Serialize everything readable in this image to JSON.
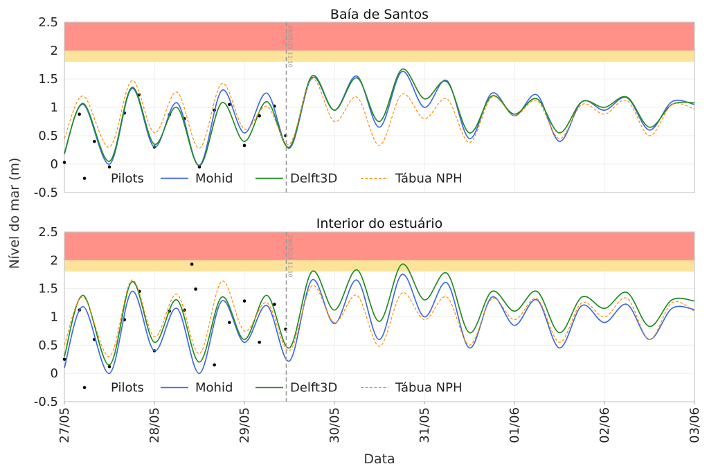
{
  "ylabel": "Nível do mar (m)",
  "xlabel": "Data",
  "now_label": "29/05/25 11:10",
  "x_tick_labels": [
    "27/05",
    "28/05",
    "29/05",
    "30/05",
    "31/05",
    "01/06",
    "02/06",
    "03/06"
  ],
  "legend": [
    "Pilots",
    "Mohid",
    "Delft3D",
    "Tábua NPH"
  ],
  "colors": {
    "pilots": "#000000",
    "mohid": "#4169e1",
    "delft": "#228b22",
    "nph": "#ff8c00",
    "red_band": "#ff9188",
    "yellow_band": "#fbe49a",
    "now_line": "#999999"
  },
  "chart_data": [
    {
      "type": "line",
      "title": "Baía de Santos",
      "x_range": [
        "27/05",
        "03/06"
      ],
      "ylim": [
        -0.5,
        2.5
      ],
      "y_ticks": [
        "-0.5",
        "0",
        "0.5",
        "1",
        "1.5",
        "2",
        "2.5"
      ],
      "bands": [
        {
          "color": "red",
          "from": 2.0,
          "to": 2.5
        },
        {
          "color": "yellow",
          "from": 1.8,
          "to": 2.0
        }
      ],
      "now_marker": "29/05/25 11:10",
      "series": [
        {
          "name": "Pilots",
          "style": "dots",
          "x": [
            "27/05 00:00",
            "27/05 04:00",
            "27/05 08:00",
            "27/05 12:00",
            "27/05 16:00",
            "27/05 20:00",
            "28/05 00:00",
            "28/05 04:00",
            "28/05 08:00",
            "28/05 12:00",
            "28/05 16:00",
            "28/05 20:00",
            "29/05 00:00",
            "29/05 04:00",
            "29/05 08:00",
            "29/05 11:00"
          ],
          "y": [
            0.03,
            0.88,
            0.4,
            -0.05,
            0.9,
            1.22,
            0.3,
            0.87,
            0.8,
            -0.05,
            0.95,
            1.05,
            0.33,
            0.85,
            1.02,
            0.5
          ]
        },
        {
          "name": "Mohid",
          "style": "solid",
          "x": [
            "27/05 00:00",
            "27/05 05:00",
            "27/05 12:00",
            "27/05 18:00",
            "28/05 00:00",
            "28/05 06:00",
            "28/05 12:00",
            "28/05 18:00",
            "29/05 00:00",
            "29/05 06:00",
            "29/05 12:00",
            "29/05 18:00",
            "30/05 00:00",
            "30/05 06:00",
            "30/05 12:00",
            "30/05 18:00",
            "31/05 00:00",
            "31/05 06:00",
            "31/05 12:00",
            "31/05 18:00",
            "01/06 00:00",
            "01/06 06:00",
            "01/06 12:00",
            "01/06 18:00",
            "02/06 00:00",
            "02/06 06:00",
            "02/06 12:00",
            "02/06 18:00",
            "03/06 00:00"
          ],
          "y": [
            0.2,
            1.05,
            0.0,
            1.33,
            0.3,
            1.08,
            -0.02,
            1.3,
            0.55,
            1.25,
            0.28,
            1.52,
            0.95,
            1.55,
            0.65,
            1.63,
            1.0,
            1.47,
            0.45,
            1.25,
            0.85,
            1.22,
            0.4,
            1.1,
            0.95,
            1.17,
            0.6,
            1.1,
            1.05
          ]
        },
        {
          "name": "Delft3D",
          "style": "solid",
          "x": [
            "27/05 00:00",
            "27/05 05:00",
            "27/05 12:00",
            "27/05 18:00",
            "28/05 00:00",
            "28/05 06:00",
            "28/05 12:00",
            "28/05 18:00",
            "29/05 00:00",
            "29/05 06:00",
            "29/05 12:00",
            "29/05 18:00",
            "30/05 00:00",
            "30/05 06:00",
            "30/05 12:00",
            "30/05 18:00",
            "31/05 00:00",
            "31/05 06:00",
            "31/05 12:00",
            "31/05 18:00",
            "01/06 00:00",
            "01/06 06:00",
            "01/06 12:00",
            "01/06 18:00",
            "02/06 00:00",
            "02/06 06:00",
            "02/06 12:00",
            "02/06 18:00",
            "03/06 00:00"
          ],
          "y": [
            0.18,
            1.07,
            0.05,
            1.35,
            0.35,
            1.0,
            -0.03,
            1.08,
            0.4,
            1.1,
            0.3,
            1.55,
            0.95,
            1.52,
            0.75,
            1.67,
            1.15,
            1.45,
            0.55,
            1.2,
            0.88,
            1.15,
            0.55,
            1.1,
            1.0,
            1.18,
            0.65,
            1.05,
            1.08
          ]
        },
        {
          "name": "Tábua NPH",
          "style": "dashed",
          "x": [
            "27/05 00:00",
            "27/05 05:00",
            "27/05 12:00",
            "27/05 18:00",
            "28/05 00:00",
            "28/05 06:00",
            "28/05 12:00",
            "28/05 18:00",
            "29/05 00:00",
            "29/05 06:00",
            "29/05 12:00",
            "29/05 18:00",
            "30/05 00:00",
            "30/05 06:00",
            "30/05 12:00",
            "30/05 18:00",
            "31/05 00:00",
            "31/05 06:00",
            "31/05 12:00",
            "31/05 18:00",
            "01/06 00:00",
            "01/06 06:00",
            "01/06 12:00",
            "01/06 18:00",
            "02/06 00:00",
            "02/06 06:00",
            "02/06 12:00",
            "02/06 18:00",
            "03/06 00:00"
          ],
          "y": [
            0.45,
            1.2,
            0.3,
            1.47,
            0.55,
            1.27,
            0.28,
            1.42,
            0.62,
            1.02,
            0.35,
            1.5,
            0.75,
            1.18,
            0.33,
            1.23,
            0.8,
            1.15,
            0.38,
            1.18,
            0.85,
            1.12,
            0.45,
            1.05,
            0.88,
            1.12,
            0.5,
            1.05,
            0.97
          ]
        }
      ]
    },
    {
      "type": "line",
      "title": "Interior do estuário",
      "x_range": [
        "27/05",
        "03/06"
      ],
      "ylim": [
        -0.5,
        2.5
      ],
      "y_ticks": [
        "-0.5",
        "0",
        "0.5",
        "1",
        "1.5",
        "2",
        "2.5"
      ],
      "bands": [
        {
          "color": "red",
          "from": 2.0,
          "to": 2.5
        },
        {
          "color": "yellow",
          "from": 1.8,
          "to": 2.0
        }
      ],
      "now_marker": "29/05/25 11:10",
      "series": [
        {
          "name": "Pilots",
          "style": "dots",
          "x": [
            "27/05 00:00",
            "27/05 04:00",
            "27/05 08:00",
            "27/05 12:00",
            "27/05 16:00",
            "27/05 20:00",
            "28/05 00:00",
            "28/05 04:00",
            "28/05 08:00",
            "28/05 10:00",
            "28/05 11:00",
            "28/05 16:00",
            "28/05 20:00",
            "29/05 00:00",
            "29/05 04:00",
            "29/05 08:00",
            "29/05 11:00"
          ],
          "y": [
            0.25,
            1.12,
            0.6,
            0.12,
            0.95,
            1.45,
            0.4,
            1.1,
            1.12,
            1.93,
            1.49,
            0.15,
            0.9,
            1.28,
            0.55,
            1.22,
            0.78
          ]
        },
        {
          "name": "Mohid",
          "style": "solid",
          "x": [
            "27/05 00:00",
            "27/05 05:00",
            "27/05 12:00",
            "27/05 18:00",
            "28/05 00:00",
            "28/05 06:00",
            "28/05 12:00",
            "28/05 18:00",
            "29/05 00:00",
            "29/05 06:00",
            "29/05 12:00",
            "29/05 18:00",
            "30/05 00:00",
            "30/05 06:00",
            "30/05 12:00",
            "30/05 18:00",
            "31/05 00:00",
            "31/05 06:00",
            "31/05 12:00",
            "31/05 18:00",
            "01/06 00:00",
            "01/06 06:00",
            "01/06 12:00",
            "01/06 18:00",
            "02/06 00:00",
            "02/06 06:00",
            "02/06 12:00",
            "02/06 18:00",
            "03/06 00:00"
          ],
          "y": [
            0.1,
            1.18,
            0.0,
            1.45,
            0.4,
            1.15,
            0.0,
            1.28,
            0.55,
            1.2,
            0.22,
            1.65,
            0.88,
            1.65,
            0.6,
            1.75,
            1.0,
            1.6,
            0.45,
            1.35,
            0.85,
            1.3,
            0.45,
            1.2,
            0.9,
            1.22,
            0.6,
            1.15,
            1.13
          ]
        },
        {
          "name": "Delft3D",
          "style": "solid",
          "x": [
            "27/05 00:00",
            "27/05 05:00",
            "27/05 12:00",
            "27/05 18:00",
            "28/05 00:00",
            "28/05 06:00",
            "28/05 12:00",
            "28/05 18:00",
            "29/05 00:00",
            "29/05 06:00",
            "29/05 12:00",
            "29/05 18:00",
            "30/05 00:00",
            "30/05 06:00",
            "30/05 12:00",
            "30/05 18:00",
            "31/05 00:00",
            "31/05 06:00",
            "31/05 12:00",
            "31/05 18:00",
            "01/06 00:00",
            "01/06 06:00",
            "01/06 12:00",
            "01/06 18:00",
            "02/06 00:00",
            "02/06 06:00",
            "02/06 12:00",
            "02/06 18:00",
            "03/06 00:00"
          ],
          "y": [
            0.3,
            1.38,
            0.15,
            1.62,
            0.55,
            1.3,
            0.2,
            1.35,
            0.6,
            1.38,
            0.45,
            1.8,
            1.12,
            1.83,
            0.92,
            1.93,
            1.3,
            1.77,
            0.72,
            1.45,
            1.1,
            1.45,
            0.72,
            1.35,
            1.15,
            1.43,
            0.83,
            1.3,
            1.28
          ]
        },
        {
          "name": "Tábua NPH",
          "style": "dashed",
          "x": [
            "27/05 00:00",
            "27/05 05:00",
            "27/05 12:00",
            "27/05 18:00",
            "28/05 00:00",
            "28/05 06:00",
            "28/05 12:00",
            "28/05 18:00",
            "29/05 00:00",
            "29/05 06:00",
            "29/05 12:00",
            "29/05 18:00",
            "30/05 00:00",
            "30/05 06:00",
            "30/05 12:00",
            "30/05 18:00",
            "31/05 00:00",
            "31/05 06:00",
            "31/05 12:00",
            "31/05 18:00",
            "01/06 00:00",
            "01/06 06:00",
            "01/06 12:00",
            "01/06 18:00",
            "02/06 00:00",
            "02/06 06:00",
            "02/06 12:00",
            "02/06 18:00",
            "03/06 00:00"
          ],
          "y": [
            0.5,
            1.35,
            0.3,
            1.65,
            0.65,
            1.4,
            0.35,
            1.63,
            0.75,
            1.25,
            0.4,
            1.55,
            0.9,
            1.38,
            0.48,
            1.42,
            0.95,
            1.35,
            0.5,
            1.32,
            0.95,
            1.32,
            0.55,
            1.25,
            1.0,
            1.33,
            0.6,
            1.25,
            1.1
          ]
        }
      ]
    }
  ]
}
